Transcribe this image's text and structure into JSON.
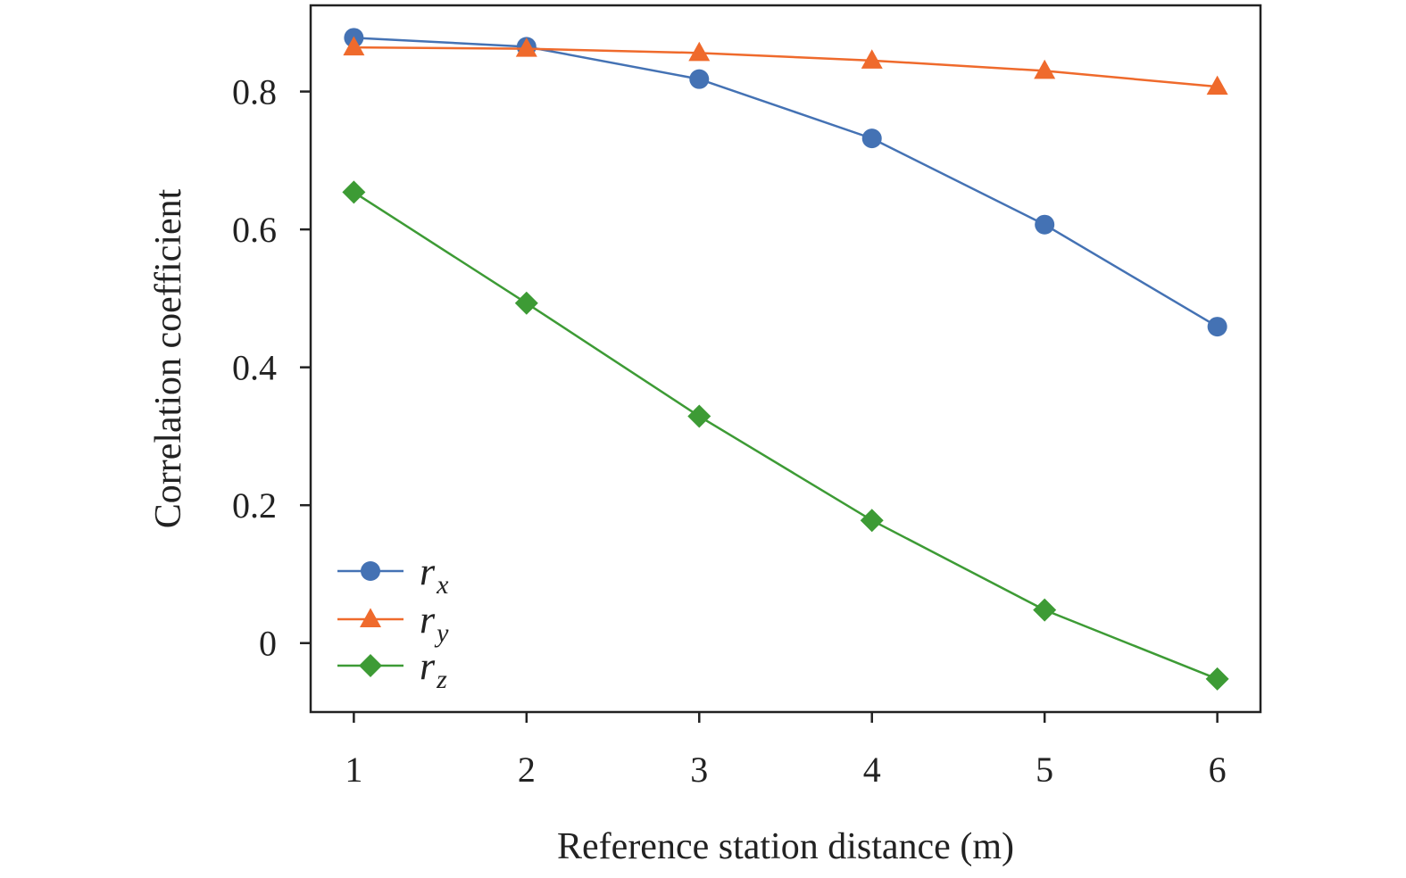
{
  "chart_data": {
    "type": "line",
    "xlabel": "Reference station distance (m)",
    "ylabel": "Correlation coefficient",
    "x": [
      1,
      2,
      3,
      4,
      5,
      6
    ],
    "xticks": [
      "1",
      "2",
      "3",
      "4",
      "5",
      "6"
    ],
    "xlim": [
      0.75,
      6.25
    ],
    "yticks": [
      "0",
      "0.2",
      "0.4",
      "0.6",
      "0.8"
    ],
    "ylim": [
      -0.1,
      0.925
    ],
    "grid": false,
    "legend_position": "bottom-left",
    "series": [
      {
        "name": "r",
        "subscript": "x",
        "marker": "circle",
        "color": "#4472b4",
        "values": [
          0.878,
          0.865,
          0.818,
          0.732,
          0.607,
          0.459
        ]
      },
      {
        "name": "r",
        "subscript": "y",
        "marker": "triangle",
        "color": "#ef6a2c",
        "values": [
          0.864,
          0.862,
          0.856,
          0.845,
          0.83,
          0.807
        ]
      },
      {
        "name": "r",
        "subscript": "z",
        "marker": "diamond",
        "color": "#3d9b35",
        "values": [
          0.654,
          0.493,
          0.329,
          0.178,
          0.048,
          -0.052
        ]
      }
    ]
  }
}
